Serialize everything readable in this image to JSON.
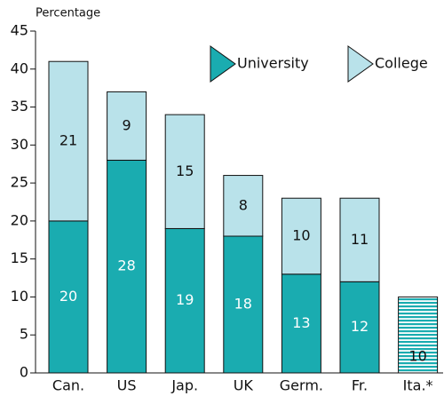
{
  "chart_data": {
    "type": "bar",
    "stacked": true,
    "y_label": "Percentage",
    "categories": [
      "Can.",
      "US",
      "Jap.",
      "UK",
      "Germ.",
      "Fr.",
      "Ita.*"
    ],
    "series": [
      {
        "name": "University",
        "color": "#1aacb0",
        "label_color": "#ffffff",
        "values": [
          20,
          28,
          19,
          18,
          13,
          12,
          null
        ]
      },
      {
        "name": "College",
        "color": "#b9e2ea",
        "label_color": "#111111",
        "values": [
          21,
          9,
          15,
          8,
          10,
          11,
          null
        ]
      },
      {
        "name": null,
        "color": "#1aacb0",
        "label_color": "#111111",
        "hatched": true,
        "values": [
          null,
          null,
          null,
          null,
          null,
          null,
          10
        ]
      }
    ],
    "ylim": [
      0,
      45
    ],
    "yticks": [
      0,
      5,
      10,
      15,
      20,
      25,
      30,
      35,
      40,
      45
    ],
    "grid": false,
    "legend": "top-right"
  }
}
